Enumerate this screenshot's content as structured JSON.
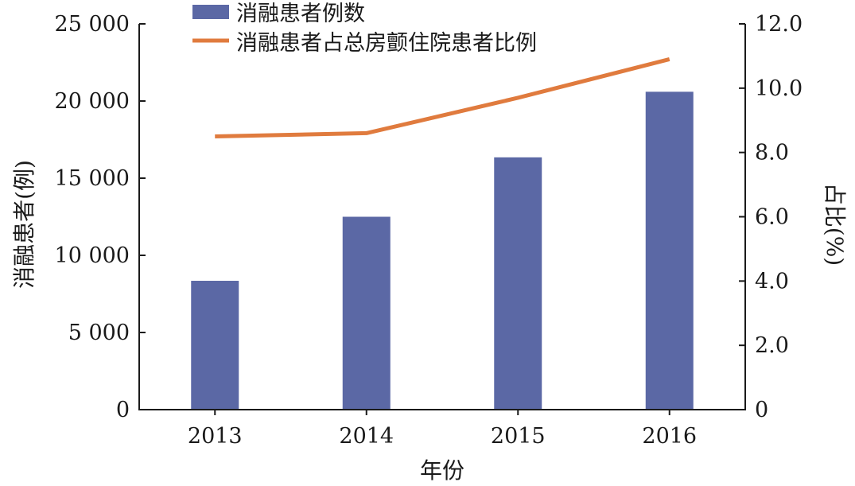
{
  "chart_data": {
    "type": "bar",
    "categories": [
      "2013",
      "2014",
      "2015",
      "2016"
    ],
    "series": [
      {
        "name": "消融患者例数",
        "type": "bar",
        "axis": "left",
        "values": [
          8350,
          12500,
          16350,
          20600
        ],
        "color": "#5b68a5"
      },
      {
        "name": "消融患者占总房颤住院患者比例",
        "type": "line",
        "axis": "right",
        "values": [
          8.5,
          8.6,
          9.7,
          10.9
        ],
        "color": "#e07b3e"
      }
    ],
    "xlabel": "年份",
    "ylabel": "消融患者(例)",
    "y2label": "占比(%)",
    "ylim": [
      0,
      25000
    ],
    "y2lim": [
      0,
      12
    ],
    "yticks": [
      {
        "value": 0,
        "label": "0"
      },
      {
        "value": 5000,
        "label": "5 000"
      },
      {
        "value": 10000,
        "label": "10 000"
      },
      {
        "value": 15000,
        "label": "15 000"
      },
      {
        "value": 20000,
        "label": "20 000"
      },
      {
        "value": 25000,
        "label": "25 000"
      }
    ],
    "y2ticks": [
      {
        "value": 0,
        "label": "0"
      },
      {
        "value": 2,
        "label": "2.0"
      },
      {
        "value": 4,
        "label": "4.0"
      },
      {
        "value": 6,
        "label": "6.0"
      },
      {
        "value": 8,
        "label": "8.0"
      },
      {
        "value": 10,
        "label": "10.0"
      },
      {
        "value": 12,
        "label": "12.0"
      }
    ],
    "legend_position": "top",
    "grid": false
  }
}
